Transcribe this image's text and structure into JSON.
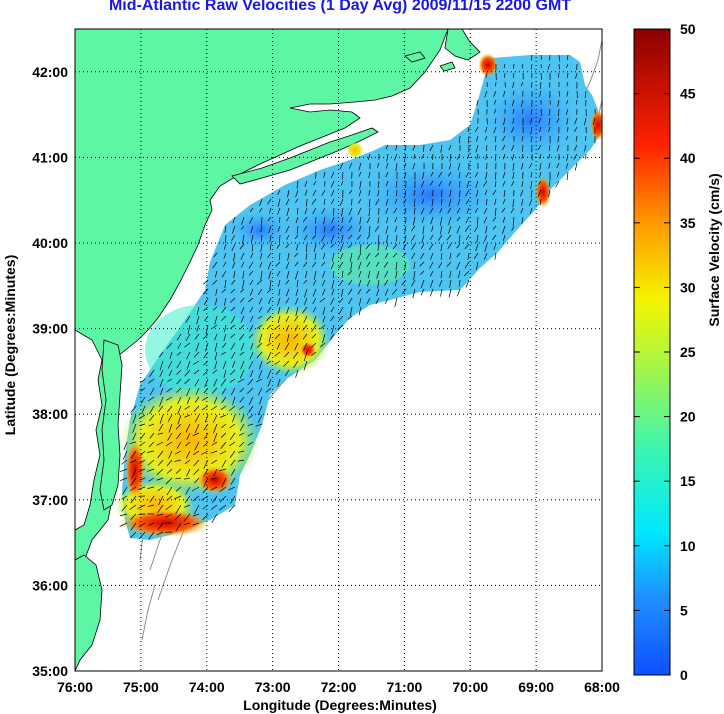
{
  "title": "Mid-Atlantic Raw Velocities (1 Day Avg) 2009/11/15 2200 GMT",
  "colors": {
    "land": "#5ef5a5",
    "ocean": "#ffffff",
    "title": "#1717e6",
    "coast_outline": "#000000",
    "isobath": "#8c8c8c",
    "grid": "#000000"
  },
  "map": {
    "xlabel": "Longitude (Degrees:Minutes)",
    "ylabel": "Latitude (Degrees:Minutes)",
    "x_ticks": [
      "76:00",
      "75:00",
      "74:00",
      "73:00",
      "72:00",
      "71:00",
      "70:00",
      "69:00",
      "68:00"
    ],
    "y_ticks": [
      "35:00",
      "36:00",
      "37:00",
      "38:00",
      "39:00",
      "40:00",
      "41:00",
      "42:00"
    ],
    "lon_range": [
      -76,
      -68
    ],
    "lat_range": [
      35,
      42.5
    ],
    "grid": "dotted"
  },
  "colorbar": {
    "label": "Surface Velocity (cm/s)",
    "ticks": [
      "0",
      "5",
      "10",
      "15",
      "20",
      "25",
      "30",
      "35",
      "40",
      "45",
      "50"
    ],
    "range": [
      0,
      50
    ],
    "colormap": "jet"
  }
}
